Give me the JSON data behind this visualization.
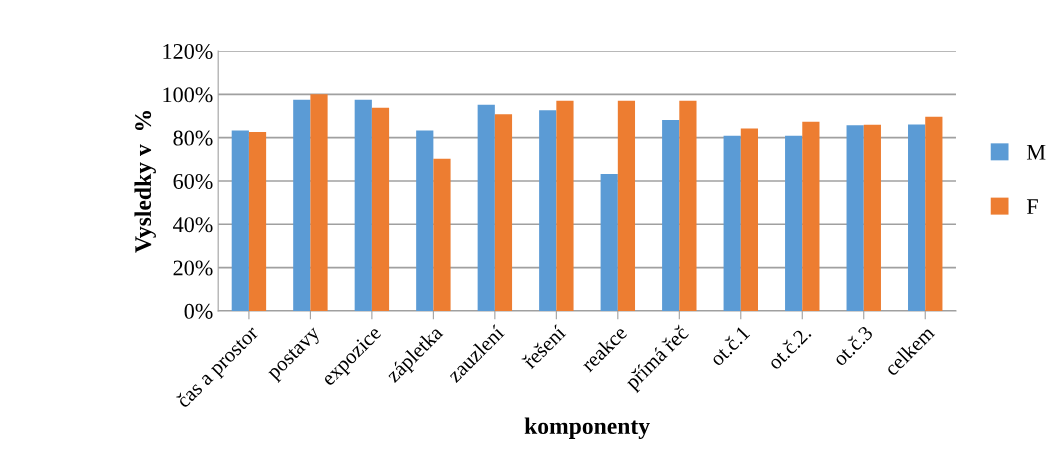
{
  "chart_data": {
    "type": "bar",
    "xlabel": "komponenty",
    "ylabel": "Vysledky v  %",
    "categories": [
      "čas a prostor",
      "postavy",
      "expozice",
      "zápletka",
      "zauzlení",
      "řešení",
      "reakce",
      "přímá řeč",
      "ot.č.1",
      "ot.č.2.",
      "ot.č.3",
      "celkem"
    ],
    "series": [
      {
        "name": "M",
        "color": "#5b9bd5",
        "values": [
          83.3,
          97.5,
          97.5,
          83.3,
          95.2,
          92.7,
          63.2,
          88.1,
          80.9,
          80.9,
          85.7,
          86.1
        ]
      },
      {
        "name": "F",
        "color": "#ed7d31",
        "values": [
          82.6,
          100,
          93.8,
          70.2,
          90.8,
          97.0,
          97.0,
          97.0,
          84.2,
          87.4,
          86.0,
          89.6
        ]
      }
    ],
    "ylim": [
      0,
      120
    ],
    "yticks": [
      {
        "value": 0,
        "label": "0%"
      },
      {
        "value": 20,
        "label": "20%"
      },
      {
        "value": 40,
        "label": "40%"
      },
      {
        "value": 60,
        "label": "60%"
      },
      {
        "value": 80,
        "label": "80%"
      },
      {
        "value": 100,
        "label": "100%"
      },
      {
        "value": 120,
        "label": "120%"
      }
    ],
    "grid": "y",
    "legend": "right"
  }
}
